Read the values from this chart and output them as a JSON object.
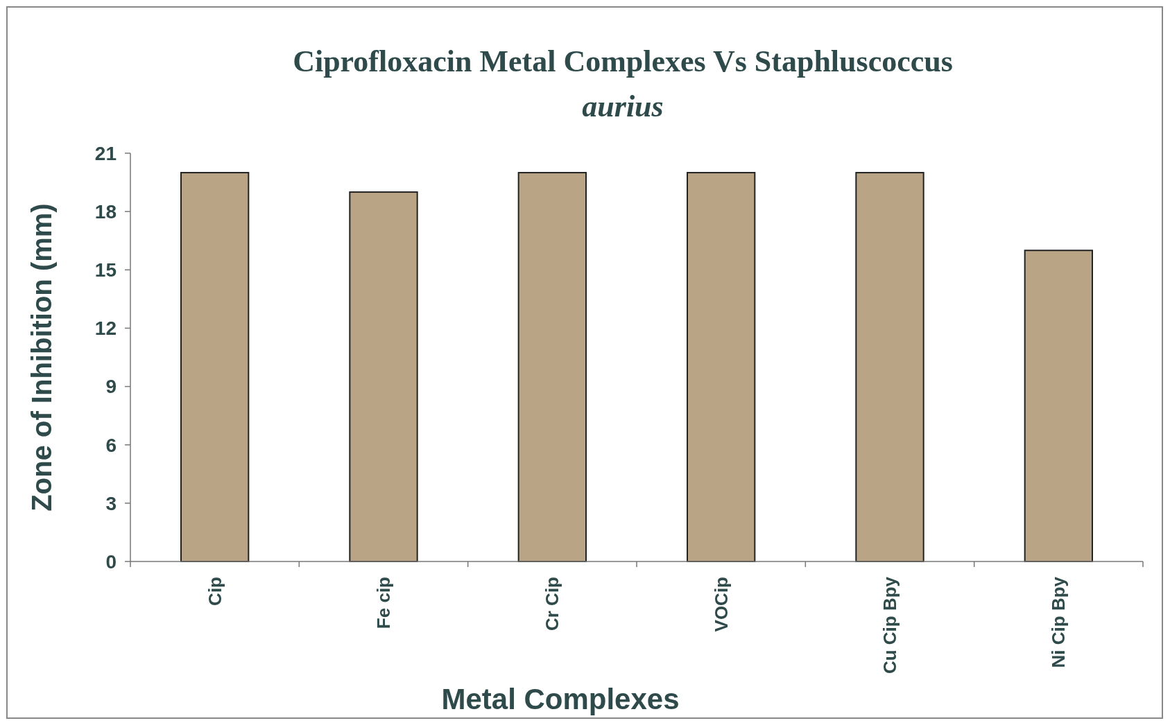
{
  "chart_data": {
    "type": "bar",
    "title": "Ciprofloxacin Metal Complexes Vs Staphluscoccus aurius",
    "xlabel": "Metal Complexes",
    "ylabel": "Zone of Inhibition (mm)",
    "categories": [
      "Cip",
      "Fe cip",
      "Cr Cip",
      "VOCip",
      "Cu Cip Bpy",
      "Ni Cip Bpy"
    ],
    "values": [
      20,
      19,
      20,
      20,
      20,
      16
    ],
    "color": "#b9a486",
    "ylim": [
      0,
      21
    ],
    "yticks": [
      0,
      3,
      6,
      9,
      12,
      15,
      18,
      21
    ],
    "grid": false
  }
}
